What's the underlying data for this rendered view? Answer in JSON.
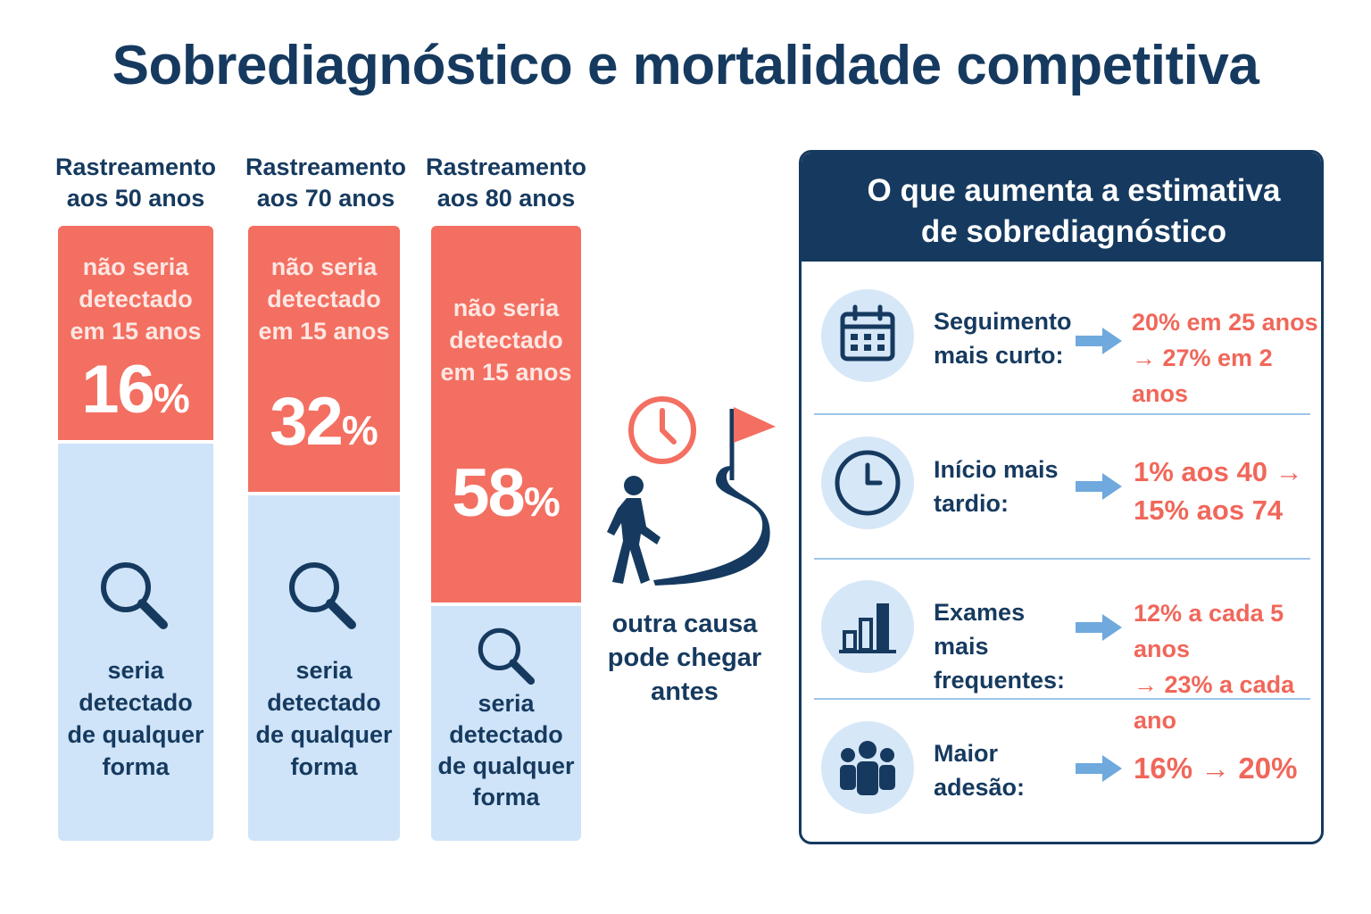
{
  "title": "Sobrediagnóstico e mortalidade competitiva",
  "columns": [
    {
      "heading_line1": "Rastreamento",
      "heading_line2": "aos 50 anos",
      "top_line1": "não seria",
      "top_line2": "detectado",
      "top_line3": "em 15 anos",
      "percent_number": "16",
      "percent_sign": "%",
      "bottom_line1": "seria",
      "bottom_line2": "detectado",
      "bottom_line3": "de qualquer",
      "bottom_line4": "forma"
    },
    {
      "heading_line1": "Rastreamento",
      "heading_line2": "aos 70 anos",
      "top_line1": "não seria",
      "top_line2": "detectado",
      "top_line3": "em 15 anos",
      "percent_number": "32",
      "percent_sign": "%",
      "bottom_line1": "seria",
      "bottom_line2": "detectado",
      "bottom_line3": "de qualquer",
      "bottom_line4": "forma"
    },
    {
      "heading_line1": "Rastreamento",
      "heading_line2": "aos 80 anos",
      "top_line1": "não seria",
      "top_line2": "detectado",
      "top_line3": "em 15 anos",
      "percent_number": "58",
      "percent_sign": "%",
      "bottom_line1": "seria",
      "bottom_line2": "detectado",
      "bottom_line3": "de qualquer",
      "bottom_line4": "forma"
    }
  ],
  "competing_cause": {
    "line1": "outra causa",
    "line2": "pode chegar",
    "line3": "antes",
    "icons": [
      "clock-icon",
      "walking-person-icon",
      "road-icon",
      "flag-icon"
    ]
  },
  "panel": {
    "title_line1": "O que aumenta a estimativa",
    "title_line2": "de sobrediagnóstico",
    "rows": [
      {
        "icon": "calendar-icon",
        "label_line1": "Seguimento",
        "label_line2": "mais curto:",
        "value_line1": "20% em 25 anos",
        "value_line2": "→ 27% em 2 anos"
      },
      {
        "icon": "clock-icon",
        "label_line1": "Início mais",
        "label_line2": "tardio:",
        "value_line1": "1% aos 40 →",
        "value_line2": "15% aos 74"
      },
      {
        "icon": "bar-chart-icon",
        "label_line1": "Exames mais",
        "label_line2": "frequentes:",
        "value_line1": "12% a cada 5 anos",
        "value_line2": "→ 23% a cada ano"
      },
      {
        "icon": "people-icon",
        "label_line1": "Maior",
        "label_line2": "adesão:",
        "value_line1": "16% → 20%"
      }
    ]
  },
  "colors": {
    "navy": "#163a5f",
    "coral": "#f36f61",
    "light_blue": "#cfe4f8",
    "arrow_blue": "#6fa9dd"
  }
}
